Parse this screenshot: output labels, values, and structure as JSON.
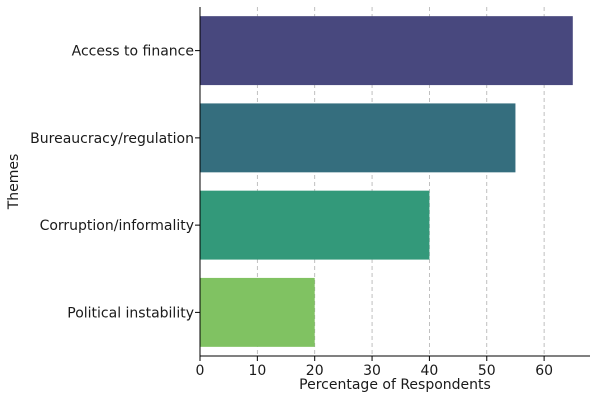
{
  "chart_data": {
    "type": "bar",
    "orientation": "horizontal",
    "categories": [
      "Access to finance",
      "Bureaucracy/regulation",
      "Corruption/informality",
      "Political instability"
    ],
    "values": [
      65,
      55,
      40,
      20
    ],
    "colors": [
      "#48487e",
      "#356e7e",
      "#33997a",
      "#80c262"
    ],
    "xlabel": "Percentage of Respondents",
    "ylabel": "Themes",
    "xlim": [
      0,
      68
    ],
    "xticks": [
      0,
      10,
      20,
      30,
      40,
      50,
      60
    ],
    "grid": "vertical dashed"
  }
}
